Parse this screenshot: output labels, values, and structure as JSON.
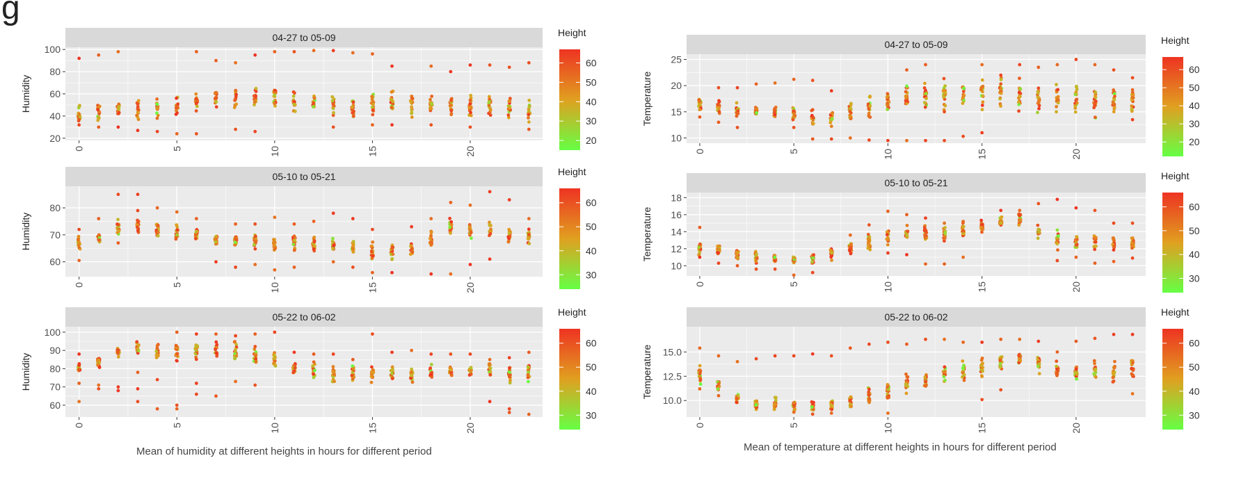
{
  "figure_mark": "g",
  "colors": {
    "low": "#66ff44",
    "mid": "#e0a020",
    "high": "#ee3322",
    "panel_bg": "#ebebeb",
    "strip_bg": "#d9d9d9",
    "grid": "#ffffff"
  },
  "captions": {
    "left": "Mean of humidity at different heights in hours for different period",
    "right": "Mean of temperature at different heights in hours for different period"
  },
  "legend": {
    "title": "Height"
  },
  "chart_data": [
    {
      "type": "scatter",
      "strip": "04-27 to 05-09",
      "ylabel": "Humidity",
      "xlabel": "",
      "xlim": [
        -0.7,
        23.7
      ],
      "ylim": [
        18,
        102
      ],
      "yticks": [
        20,
        40,
        60,
        80,
        100
      ],
      "xticks": [
        0,
        5,
        10,
        15,
        20
      ],
      "legend_ticks": [
        20,
        30,
        40,
        50,
        60
      ],
      "legend_range": [
        15,
        67
      ],
      "seed": 11,
      "hours": [
        0,
        1,
        2,
        3,
        4,
        5,
        6,
        7,
        8,
        9,
        10,
        11,
        12,
        13,
        14,
        15,
        16,
        17,
        18,
        19,
        20,
        21,
        22,
        23
      ],
      "center": [
        42,
        44,
        46,
        46,
        46,
        48,
        54,
        55,
        57,
        58,
        58,
        55,
        51,
        50,
        49,
        50,
        53,
        51,
        50,
        50,
        49,
        48,
        46,
        44
      ],
      "spread": [
        7,
        8,
        7,
        7,
        7,
        8,
        8,
        8,
        8,
        9,
        9,
        9,
        8,
        9,
        9,
        10,
        10,
        10,
        9,
        9,
        9,
        9,
        8,
        8
      ],
      "outliers": [
        [
          0,
          92
        ],
        [
          0,
          32
        ],
        [
          1,
          95
        ],
        [
          1,
          30
        ],
        [
          2,
          98
        ],
        [
          2,
          30
        ],
        [
          3,
          27
        ],
        [
          4,
          26
        ],
        [
          5,
          24
        ],
        [
          6,
          98
        ],
        [
          6,
          24
        ],
        [
          7,
          90
        ],
        [
          8,
          88
        ],
        [
          8,
          28
        ],
        [
          9,
          95
        ],
        [
          9,
          26
        ],
        [
          10,
          98
        ],
        [
          11,
          98
        ],
        [
          12,
          99
        ],
        [
          13,
          99
        ],
        [
          13,
          30
        ],
        [
          14,
          97
        ],
        [
          15,
          96
        ],
        [
          15,
          32
        ],
        [
          16,
          85
        ],
        [
          16,
          32
        ],
        [
          18,
          85
        ],
        [
          18,
          32
        ],
        [
          19,
          80
        ],
        [
          20,
          86
        ],
        [
          20,
          30
        ],
        [
          21,
          86
        ],
        [
          22,
          84
        ],
        [
          23,
          88
        ],
        [
          23,
          28
        ]
      ]
    },
    {
      "type": "scatter",
      "strip": "04-27 to 05-09",
      "ylabel": "Temperature",
      "xlabel": "",
      "xlim": [
        -0.7,
        23.7
      ],
      "ylim": [
        9,
        26
      ],
      "yticks": [
        10,
        15,
        20,
        25
      ],
      "xticks": [
        0,
        5,
        10,
        15,
        20
      ],
      "legend_ticks": [
        20,
        30,
        40,
        50,
        60
      ],
      "legend_range": [
        12,
        67
      ],
      "seed": 23,
      "hours": [
        0,
        1,
        2,
        3,
        4,
        5,
        6,
        7,
        8,
        9,
        10,
        11,
        12,
        13,
        14,
        15,
        16,
        17,
        18,
        19,
        20,
        21,
        22,
        23
      ],
      "center": [
        16.5,
        15.8,
        15.5,
        15.2,
        14.9,
        14.5,
        13.8,
        13.8,
        15,
        16,
        17,
        17.5,
        18.5,
        18,
        18.5,
        18.5,
        18,
        18,
        17.5,
        18,
        17.5,
        17.5,
        17,
        17
      ],
      "spread": [
        1.2,
        1.2,
        1.2,
        1,
        1,
        1.2,
        1.2,
        1.4,
        1.5,
        1.8,
        2,
        2.3,
        2.5,
        2.5,
        2.6,
        2.6,
        2.5,
        2.5,
        2.5,
        2.8,
        2.8,
        2.6,
        2.4,
        2
      ],
      "outliers": [
        [
          0,
          14
        ],
        [
          1,
          19.6
        ],
        [
          1,
          13
        ],
        [
          2,
          19.6
        ],
        [
          2,
          12
        ],
        [
          3,
          20.3
        ],
        [
          4,
          20.5
        ],
        [
          5,
          21.2
        ],
        [
          5,
          12
        ],
        [
          6,
          21
        ],
        [
          6,
          9.8
        ],
        [
          7,
          19
        ],
        [
          7,
          9.8
        ],
        [
          8,
          10
        ],
        [
          9,
          9.6
        ],
        [
          10,
          9.5
        ],
        [
          11,
          23
        ],
        [
          11,
          9.5
        ],
        [
          12,
          24
        ],
        [
          12,
          9.5
        ],
        [
          13,
          15
        ],
        [
          13,
          9.5
        ],
        [
          14,
          10.3
        ],
        [
          15,
          24
        ],
        [
          15,
          11
        ],
        [
          16,
          22
        ],
        [
          17,
          24
        ],
        [
          18,
          23.5
        ],
        [
          19,
          24
        ],
        [
          20,
          25
        ],
        [
          21,
          24
        ],
        [
          22,
          23
        ],
        [
          23,
          21.5
        ],
        [
          23,
          13.5
        ]
      ]
    },
    {
      "type": "scatter",
      "strip": "05-10 to 05-21",
      "ylabel": "Humidity",
      "xlabel": "",
      "xlim": [
        -0.7,
        23.7
      ],
      "ylim": [
        54.5,
        88
      ],
      "yticks": [
        60,
        70,
        80
      ],
      "xticks": [
        0,
        5,
        10,
        15,
        20
      ],
      "legend_ticks": [
        30,
        40,
        50,
        60
      ],
      "legend_range": [
        24,
        66
      ],
      "seed": 37,
      "hours": [
        0,
        1,
        2,
        3,
        4,
        5,
        6,
        7,
        8,
        9,
        10,
        11,
        12,
        13,
        14,
        15,
        16,
        17,
        18,
        19,
        20,
        21,
        22,
        23
      ],
      "center": [
        67,
        69,
        72,
        73,
        72,
        71,
        70,
        68,
        68,
        67,
        67,
        67,
        67,
        67,
        66,
        64,
        64,
        65,
        68,
        73,
        72,
        72,
        70,
        69
      ],
      "spread": [
        2,
        2,
        2.5,
        2.5,
        2.5,
        2.5,
        2.5,
        2.5,
        2.5,
        2.5,
        2.8,
        3,
        3,
        3,
        3,
        3,
        3,
        3,
        3,
        3.2,
        3.2,
        3,
        2.5,
        2.5
      ],
      "outliers": [
        [
          0,
          60.5
        ],
        [
          0,
          72
        ],
        [
          1,
          76
        ],
        [
          2,
          85
        ],
        [
          2,
          67
        ],
        [
          3,
          85
        ],
        [
          3,
          79
        ],
        [
          4,
          80
        ],
        [
          5,
          78.5
        ],
        [
          6,
          76
        ],
        [
          7,
          60
        ],
        [
          8,
          74
        ],
        [
          8,
          58
        ],
        [
          9,
          74
        ],
        [
          9,
          59
        ],
        [
          10,
          76.5
        ],
        [
          10,
          57
        ],
        [
          11,
          74
        ],
        [
          11,
          58
        ],
        [
          12,
          75
        ],
        [
          13,
          78
        ],
        [
          13,
          60
        ],
        [
          14,
          76
        ],
        [
          14,
          58
        ],
        [
          15,
          72
        ],
        [
          15,
          56
        ],
        [
          16,
          56
        ],
        [
          17,
          73
        ],
        [
          18,
          76
        ],
        [
          18,
          55.5
        ],
        [
          19,
          82
        ],
        [
          19,
          55.5
        ],
        [
          20,
          81
        ],
        [
          20,
          59
        ],
        [
          21,
          86
        ],
        [
          21,
          61
        ],
        [
          22,
          83
        ],
        [
          23,
          76
        ]
      ]
    },
    {
      "type": "scatter",
      "strip": "05-10 to 05-21",
      "ylabel": "Temperature",
      "xlabel": "",
      "xlim": [
        -0.7,
        23.7
      ],
      "ylim": [
        8.8,
        18.6
      ],
      "yticks": [
        10,
        12,
        14,
        16,
        18
      ],
      "xticks": [
        0,
        5,
        10,
        15,
        20
      ],
      "legend_ticks": [
        30,
        40,
        50,
        60
      ],
      "legend_range": [
        24,
        66
      ],
      "seed": 51,
      "hours": [
        0,
        1,
        2,
        3,
        4,
        5,
        6,
        7,
        8,
        9,
        10,
        11,
        12,
        13,
        14,
        15,
        16,
        17,
        18,
        19,
        20,
        21,
        22,
        23
      ],
      "center": [
        12,
        11.8,
        11.3,
        11,
        10.8,
        10.7,
        10.8,
        11.3,
        12,
        12.8,
        13.3,
        13.8,
        13.8,
        13.8,
        14,
        14.6,
        15.2,
        15.4,
        14,
        13,
        12.8,
        12.8,
        12.6,
        12.5
      ],
      "spread": [
        0.6,
        0.6,
        0.5,
        0.5,
        0.5,
        0.5,
        0.5,
        0.5,
        0.7,
        0.8,
        0.9,
        0.9,
        0.9,
        1,
        0.8,
        0.7,
        0.6,
        0.6,
        0.8,
        0.8,
        0.7,
        0.8,
        0.8,
        0.8
      ],
      "outliers": [
        [
          0,
          14.5
        ],
        [
          0,
          11
        ],
        [
          1,
          10.3
        ],
        [
          2,
          10
        ],
        [
          3,
          9.6
        ],
        [
          4,
          9.6
        ],
        [
          5,
          8.9
        ],
        [
          6,
          9.2
        ],
        [
          8,
          13.6
        ],
        [
          9,
          14.8
        ],
        [
          10,
          16.4
        ],
        [
          10,
          11.5
        ],
        [
          11,
          16
        ],
        [
          11,
          11.3
        ],
        [
          12,
          15.6
        ],
        [
          12,
          10.2
        ],
        [
          13,
          15
        ],
        [
          13,
          10.2
        ],
        [
          14,
          15.2
        ],
        [
          14,
          11
        ],
        [
          16,
          16.5
        ],
        [
          17,
          16.5
        ],
        [
          18,
          17.3
        ],
        [
          19,
          17.8
        ],
        [
          19,
          10.6
        ],
        [
          20,
          16.8
        ],
        [
          20,
          11
        ],
        [
          21,
          16.5
        ],
        [
          21,
          10.3
        ],
        [
          22,
          15
        ],
        [
          22,
          10.5
        ],
        [
          23,
          15
        ],
        [
          23,
          10.9
        ]
      ]
    },
    {
      "type": "scatter",
      "strip": "05-22 to 06-02",
      "ylabel": "Humidity",
      "xlabel": "",
      "xlim": [
        -0.7,
        23.7
      ],
      "ylim": [
        53.5,
        103
      ],
      "yticks": [
        60,
        70,
        80,
        90,
        100
      ],
      "xticks": [
        0,
        5,
        10,
        15,
        20
      ],
      "legend_ticks": [
        30,
        40,
        50,
        60
      ],
      "legend_range": [
        24,
        66
      ],
      "seed": 67,
      "hours": [
        0,
        1,
        2,
        3,
        4,
        5,
        6,
        7,
        8,
        9,
        10,
        11,
        12,
        13,
        14,
        15,
        16,
        17,
        18,
        19,
        20,
        21,
        22,
        23
      ],
      "center": [
        81,
        84,
        89,
        92,
        90,
        89,
        90,
        90,
        89,
        88,
        85,
        81,
        80,
        78,
        77,
        77,
        77,
        77,
        78,
        79,
        79,
        79,
        77,
        77
      ],
      "spread": [
        3,
        3,
        2.5,
        3,
        3,
        4,
        4,
        4,
        4,
        4,
        4,
        4,
        4,
        4,
        4,
        4,
        4,
        4,
        3,
        3,
        3,
        3,
        4,
        4
      ],
      "outliers": [
        [
          0,
          88
        ],
        [
          0,
          72
        ],
        [
          0,
          62
        ],
        [
          1,
          71
        ],
        [
          1,
          69
        ],
        [
          2,
          70
        ],
        [
          2,
          68
        ],
        [
          3,
          78
        ],
        [
          3,
          69
        ],
        [
          3,
          62
        ],
        [
          4,
          74
        ],
        [
          4,
          58
        ],
        [
          5,
          100
        ],
        [
          5,
          60
        ],
        [
          5,
          58
        ],
        [
          6,
          99
        ],
        [
          6,
          72
        ],
        [
          6,
          66
        ],
        [
          7,
          99
        ],
        [
          7,
          65
        ],
        [
          8,
          98
        ],
        [
          8,
          73
        ],
        [
          9,
          99
        ],
        [
          9,
          71
        ],
        [
          10,
          100
        ],
        [
          11,
          89
        ],
        [
          12,
          88
        ],
        [
          13,
          88
        ],
        [
          14,
          85
        ],
        [
          15,
          99
        ],
        [
          16,
          89
        ],
        [
          17,
          90
        ],
        [
          18,
          88
        ],
        [
          19,
          88
        ],
        [
          20,
          88
        ],
        [
          21,
          85
        ],
        [
          21,
          62
        ],
        [
          22,
          86
        ],
        [
          22,
          58
        ],
        [
          22,
          56
        ],
        [
          23,
          89
        ],
        [
          23,
          55
        ]
      ]
    },
    {
      "type": "scatter",
      "strip": "05-22 to 06-02",
      "ylabel": "Temperature",
      "xlabel": "",
      "xlim": [
        -0.7,
        23.7
      ],
      "ylim": [
        8.3,
        17.6
      ],
      "yticks": [
        10.0,
        12.5,
        15.0
      ],
      "xticks": [
        0,
        5,
        10,
        15,
        20
      ],
      "legend_ticks": [
        30,
        40,
        50,
        60
      ],
      "legend_range": [
        24,
        66
      ],
      "seed": 83,
      "hours": [
        0,
        1,
        2,
        3,
        4,
        5,
        6,
        7,
        8,
        9,
        10,
        11,
        12,
        13,
        14,
        15,
        16,
        17,
        18,
        19,
        20,
        21,
        22,
        23
      ],
      "center": [
        12.7,
        11.5,
        10.3,
        9.6,
        9.7,
        9.5,
        9.5,
        9.5,
        9.8,
        10.5,
        11,
        11.8,
        12.3,
        12.8,
        13,
        13.5,
        14,
        14.2,
        13.8,
        13.2,
        13,
        13,
        13,
        13.3
      ],
      "spread": [
        0.8,
        0.6,
        0.5,
        0.4,
        0.5,
        0.5,
        0.5,
        0.5,
        0.6,
        0.7,
        0.8,
        0.8,
        0.9,
        0.9,
        0.9,
        0.9,
        0.8,
        0.8,
        0.8,
        0.7,
        0.7,
        0.8,
        0.9,
        1
      ],
      "outliers": [
        [
          0,
          15.4
        ],
        [
          0,
          11.2
        ],
        [
          1,
          14.6
        ],
        [
          1,
          10.5
        ],
        [
          2,
          14
        ],
        [
          3,
          14.3
        ],
        [
          4,
          14.6
        ],
        [
          5,
          14.6
        ],
        [
          5,
          8.8
        ],
        [
          6,
          14.8
        ],
        [
          6,
          8.6
        ],
        [
          7,
          14.6
        ],
        [
          7,
          8.7
        ],
        [
          8,
          15.4
        ],
        [
          9,
          15.8
        ],
        [
          10,
          16
        ],
        [
          10,
          8.7
        ],
        [
          11,
          15.8
        ],
        [
          12,
          16.3
        ],
        [
          13,
          16.3
        ],
        [
          14,
          16
        ],
        [
          15,
          16
        ],
        [
          15,
          10.1
        ],
        [
          16,
          16.3
        ],
        [
          16,
          11.1
        ],
        [
          17,
          16.3
        ],
        [
          18,
          16.1
        ],
        [
          19,
          15
        ],
        [
          20,
          16.1
        ],
        [
          21,
          16.4
        ],
        [
          22,
          16.8
        ],
        [
          22,
          12
        ],
        [
          23,
          16.8
        ],
        [
          23,
          10.7
        ]
      ]
    }
  ]
}
